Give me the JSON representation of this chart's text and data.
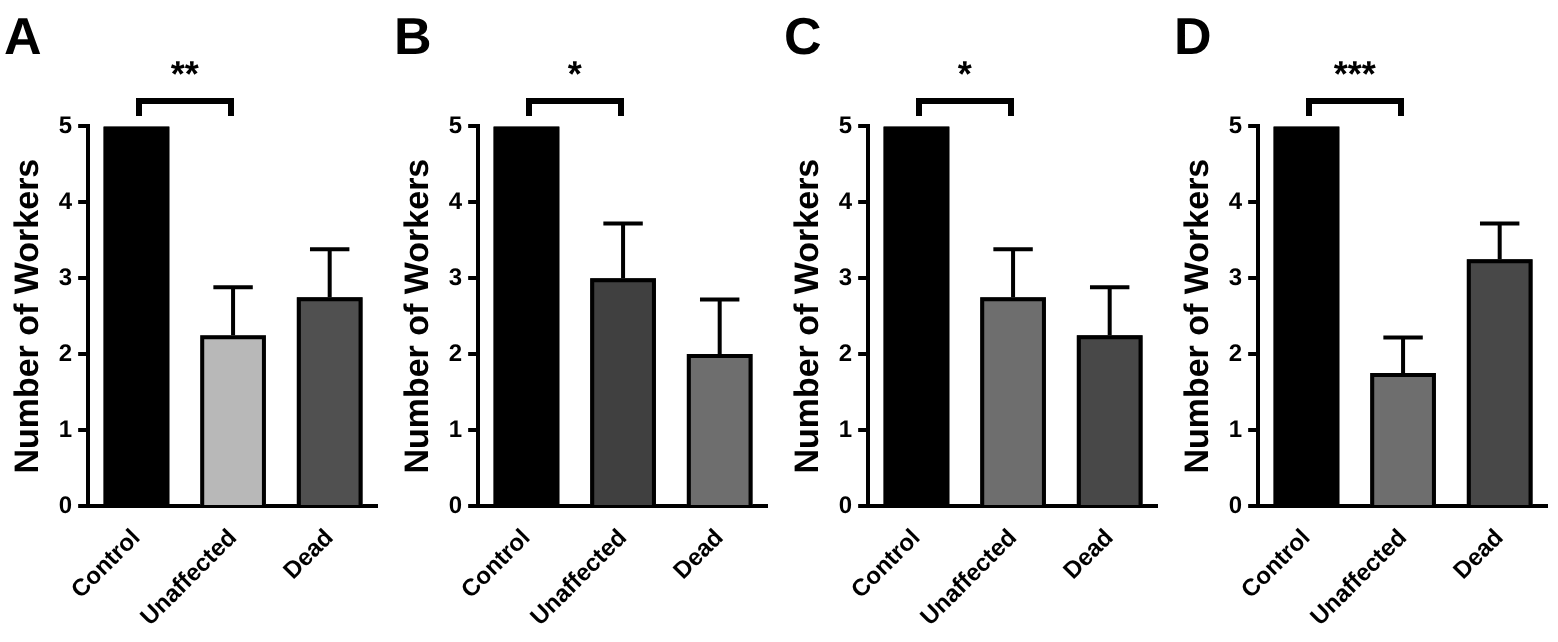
{
  "chart_data": [
    {
      "type": "bar",
      "title": "A",
      "ylabel": "Number of Workers",
      "categories": [
        "Control",
        "Unaffected",
        "Dead"
      ],
      "values": [
        5,
        2.25,
        2.75
      ],
      "colors": [
        "#000000",
        "#b8b8b8",
        "#505050"
      ],
      "errors": [
        null,
        [
          2.25,
          2.88
        ],
        [
          2.75,
          3.38
        ]
      ],
      "ylim": [
        0,
        5
      ],
      "yticks": [
        0,
        1,
        2,
        3,
        4,
        5
      ],
      "grid": false,
      "legend": false,
      "annotations": [
        "**"
      ]
    },
    {
      "type": "bar",
      "title": "B",
      "ylabel": "Number of Workers",
      "categories": [
        "Control",
        "Unaffected",
        "Dead"
      ],
      "values": [
        5,
        3,
        2
      ],
      "colors": [
        "#000000",
        "#404040",
        "#6e6e6e"
      ],
      "errors": [
        null,
        [
          3,
          3.72
        ],
        [
          2,
          2.72
        ]
      ],
      "ylim": [
        0,
        5
      ],
      "yticks": [
        0,
        1,
        2,
        3,
        4,
        5
      ],
      "grid": false,
      "legend": false,
      "annotations": [
        "*"
      ]
    },
    {
      "type": "bar",
      "title": "C",
      "ylabel": "Number of Workers",
      "categories": [
        "Control",
        "Unaffected",
        "Dead"
      ],
      "values": [
        5,
        2.75,
        2.25
      ],
      "colors": [
        "#000000",
        "#6e6e6e",
        "#484848"
      ],
      "errors": [
        null,
        [
          2.75,
          3.38
        ],
        [
          2.25,
          2.88
        ]
      ],
      "ylim": [
        0,
        5
      ],
      "yticks": [
        0,
        1,
        2,
        3,
        4,
        5
      ],
      "grid": false,
      "legend": false,
      "annotations": [
        "*"
      ]
    },
    {
      "type": "bar",
      "title": "D",
      "ylabel": "Number of Workers",
      "categories": [
        "Control",
        "Unaffected",
        "Dead"
      ],
      "values": [
        5,
        1.75,
        3.25
      ],
      "colors": [
        "#000000",
        "#6e6e6e",
        "#484848"
      ],
      "errors": [
        null,
        [
          1.75,
          2.22
        ],
        [
          3.25,
          3.72
        ]
      ],
      "ylim": [
        0,
        5
      ],
      "yticks": [
        0,
        1,
        2,
        3,
        4,
        5
      ],
      "grid": false,
      "legend": false,
      "annotations": [
        "***"
      ]
    }
  ]
}
